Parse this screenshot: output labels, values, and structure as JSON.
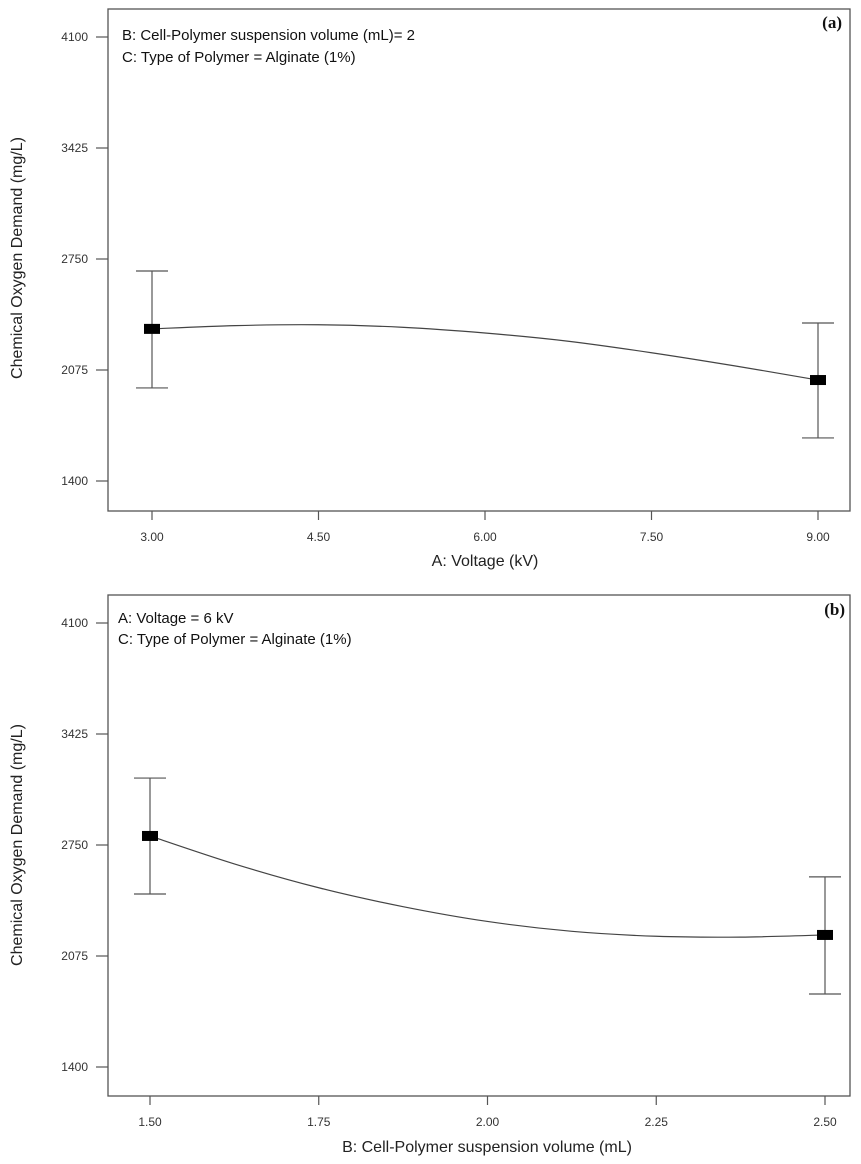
{
  "chart_data": [
    {
      "type": "line",
      "panel_label": "(a)",
      "notes": [
        "B: Cell-Polymer suspension volume (mL)= 2",
        "C: Type of Polymer = Alginate (1%)"
      ],
      "xlabel": "A: Voltage (kV)",
      "ylabel": "Chemical Oxygen Demand  (mg/L)",
      "xlim": [
        3.0,
        9.0
      ],
      "ylim": [
        1400,
        4100
      ],
      "xticks": [
        "3.00",
        "4.50",
        "6.00",
        "7.50",
        "9.00"
      ],
      "xtick_values": [
        3.0,
        4.5,
        6.0,
        7.5,
        9.0
      ],
      "yticks": [
        "1400",
        "2075",
        "2750",
        "3425",
        "4100"
      ],
      "ytick_values": [
        1400,
        2075,
        2750,
        3425,
        4100
      ],
      "curve": {
        "x": [
          3.0,
          3.75,
          4.5,
          5.25,
          6.0,
          6.75,
          7.5,
          8.25,
          9.0
        ],
        "y": [
          2325,
          2345,
          2350,
          2335,
          2300,
          2250,
          2180,
          2100,
          2014
        ]
      },
      "points": [
        {
          "x": 3.0,
          "y": 2325,
          "err_low": 1966,
          "err_high": 2677
        },
        {
          "x": 9.0,
          "y": 2014,
          "err_low": 1662,
          "err_high": 2361
        }
      ],
      "grid": false
    },
    {
      "type": "line",
      "panel_label": "(b)",
      "notes": [
        "A: Voltage = 6 kV",
        "C: Type of Polymer = Alginate (1%)"
      ],
      "xlabel": "B: Cell-Polymer suspension volume (mL)",
      "ylabel": "Chemical Oxygen Demand  (mg/L)",
      "xlim": [
        1.5,
        2.5
      ],
      "ylim": [
        1400,
        4100
      ],
      "xticks": [
        "1.50",
        "1.75",
        "2.00",
        "2.25",
        "2.50"
      ],
      "xtick_values": [
        1.5,
        1.75,
        2.0,
        2.25,
        2.5
      ],
      "yticks": [
        "1400",
        "2075",
        "2750",
        "3425",
        "4100"
      ],
      "ytick_values": [
        1400,
        2075,
        2750,
        3425,
        4100
      ],
      "curve": {
        "x": [
          1.5,
          1.625,
          1.75,
          1.875,
          2.0,
          2.125,
          2.25,
          2.375,
          2.5
        ],
        "y": [
          2805,
          2635,
          2490,
          2375,
          2285,
          2225,
          2195,
          2190,
          2203
        ]
      },
      "points": [
        {
          "x": 1.5,
          "y": 2805,
          "err_low": 2452,
          "err_high": 3157
        },
        {
          "x": 2.5,
          "y": 2203,
          "err_low": 1844,
          "err_high": 2556
        }
      ],
      "grid": false
    }
  ]
}
